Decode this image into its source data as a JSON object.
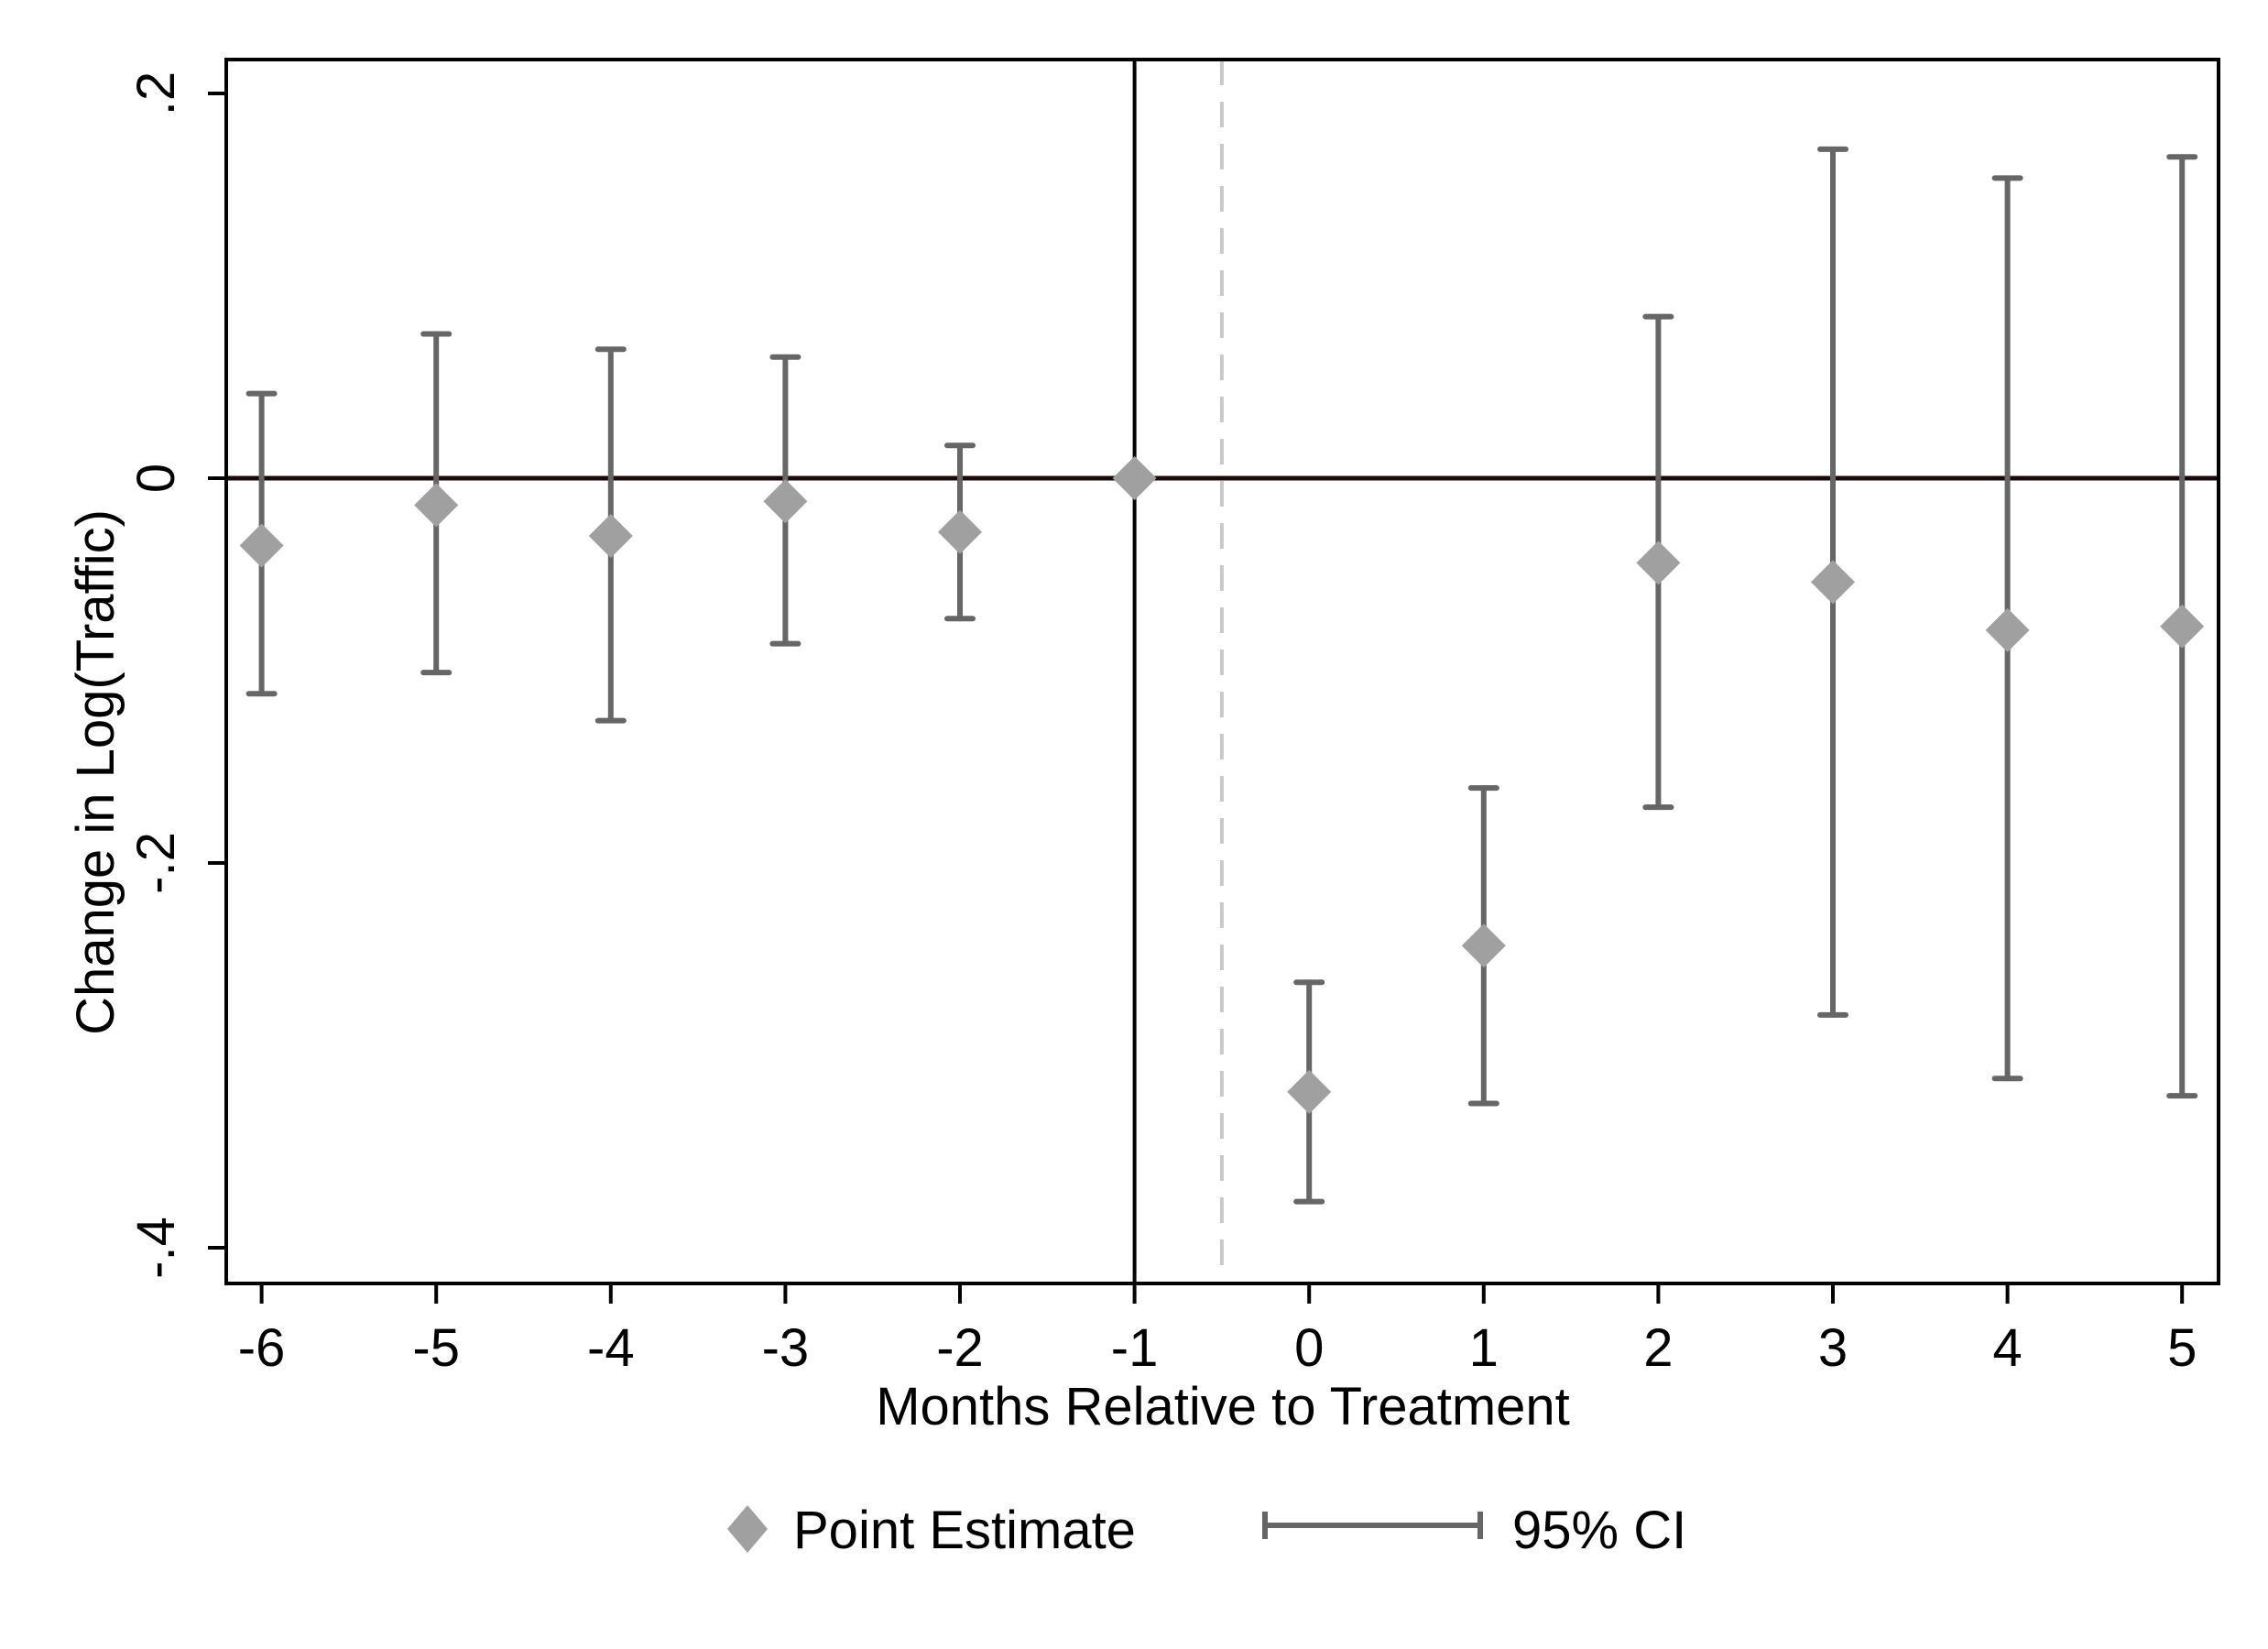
{
  "chart_data": {
    "type": "scatter",
    "subtype": "coefficient-plot-with-error-bars",
    "title": "",
    "xlabel": "Months Relative to Treatment",
    "ylabel": "Change in Log(Traffic)",
    "x_ticks": [
      -6,
      -5,
      -4,
      -3,
      -2,
      -1,
      0,
      1,
      2,
      3,
      4,
      5
    ],
    "x_tick_labels": [
      "-6",
      "-5",
      "-4",
      "-3",
      "-2",
      "-1",
      "0",
      "1",
      "2",
      "3",
      "4",
      "5"
    ],
    "y_ticks": [
      0.2,
      0,
      -0.2,
      -0.4
    ],
    "y_tick_labels": [
      ".2",
      "0",
      "-.2",
      "-.4"
    ],
    "xlim": [
      -6.2,
      5.2
    ],
    "ylim": [
      -0.441,
      0.218
    ],
    "grid": false,
    "reference_lines": {
      "horizontal_solid_y": 0,
      "vertical_solid_x": -1,
      "vertical_dashed_x": -0.5
    },
    "legend": {
      "position": "bottom",
      "entries": [
        "Point Estimate",
        "95% CI"
      ]
    },
    "x": [
      -6,
      -5,
      -4,
      -3,
      -2,
      -1,
      0,
      1,
      2,
      3,
      4,
      5
    ],
    "series": [
      {
        "name": "Point Estimate",
        "marker": "diamond",
        "color": "#a0a0a0",
        "values": [
          -0.035,
          -0.014,
          -0.03,
          -0.012,
          -0.028,
          0.0,
          -0.319,
          -0.243,
          -0.044,
          -0.054,
          -0.079,
          -0.077
        ]
      },
      {
        "name": "95% CI upper",
        "color": "#666666",
        "values": [
          0.044,
          0.075,
          0.067,
          0.063,
          0.017,
          null,
          -0.262,
          -0.161,
          0.084,
          0.171,
          0.156,
          0.167
        ]
      },
      {
        "name": "95% CI lower",
        "color": "#666666",
        "values": [
          -0.112,
          -0.101,
          -0.126,
          -0.086,
          -0.073,
          null,
          -0.376,
          -0.325,
          -0.171,
          -0.279,
          -0.312,
          -0.321
        ]
      }
    ]
  },
  "colors": {
    "marker": "#a0a0a0",
    "ci": "#666666",
    "axis": "#000000",
    "dashed": "#c8c8c8"
  }
}
